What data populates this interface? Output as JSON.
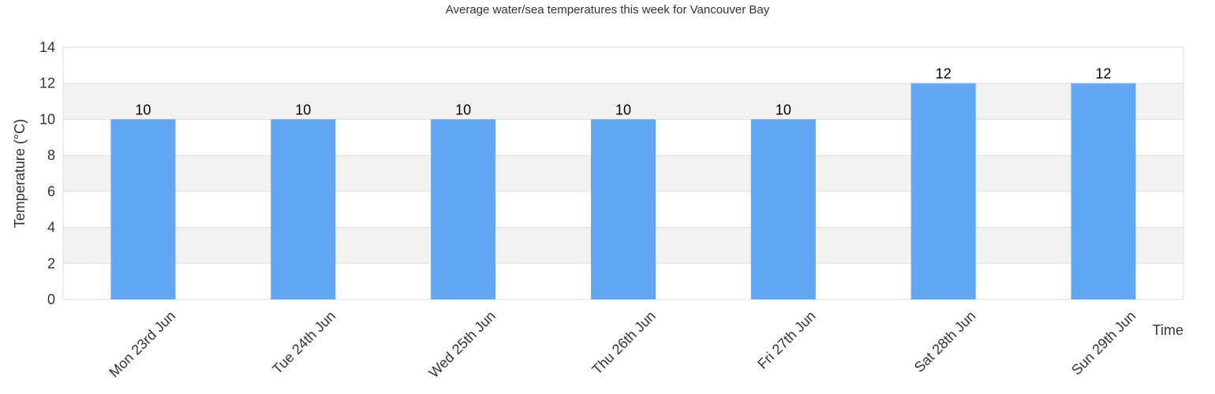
{
  "chart_data": {
    "type": "bar",
    "title": "Average water/sea temperatures this week for Vancouver Bay",
    "xlabel": "Time",
    "ylabel": "Temperature (°C)",
    "categories": [
      "Mon 23rd Jun",
      "Tue 24th Jun",
      "Wed 25th Jun",
      "Thu 26th Jun",
      "Fri 27th Jun",
      "Sat 28th Jun",
      "Sun 29th Jun"
    ],
    "values": [
      10,
      10,
      10,
      10,
      10,
      12,
      12
    ],
    "ylim": [
      0,
      14
    ],
    "yticks": [
      0,
      2,
      4,
      6,
      8,
      10,
      12,
      14
    ],
    "grid": true,
    "alternating_band_colors": [
      "#ffffff",
      "#f2f2f2"
    ],
    "bar_color": "#60a7f4",
    "data_labels": true
  }
}
